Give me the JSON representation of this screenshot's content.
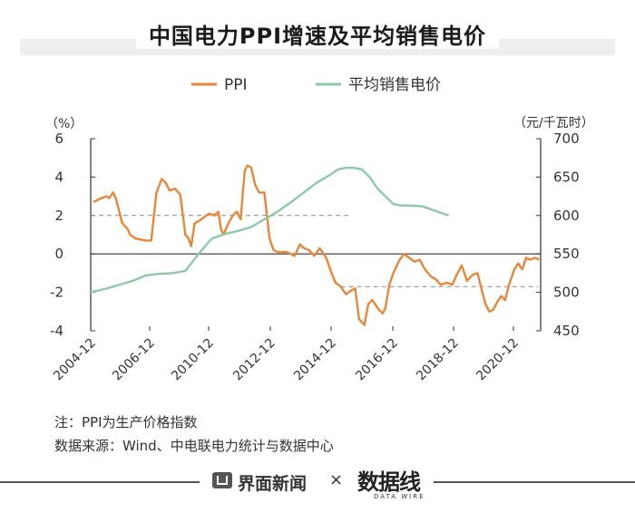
{
  "header": {
    "title": "中国电力PPI增速及平均销售电价"
  },
  "notes": {
    "note1": "注：PPI为生产价格指数",
    "note2": "数据来源：Wind、中电联电力统计与数据中心"
  },
  "footer": {
    "brand": "界面新闻",
    "separator": "×",
    "logo_text": "数据线",
    "logo_sub": "DATA WIRE"
  },
  "colors": {
    "ppi": "#e8863a",
    "price": "#8cc9a8",
    "axis": "#333333",
    "dash": "#888888"
  },
  "chart_data": {
    "type": "line",
    "y_left_unit": "（%）",
    "y_right_unit": "（元/千瓦时）",
    "y_left_ticks": [
      6,
      4,
      2,
      0,
      -2,
      -4
    ],
    "y_right_ticks": [
      700,
      650,
      600,
      550,
      500,
      450
    ],
    "ylim_left": [
      -4,
      6
    ],
    "ylim_right": [
      450,
      700
    ],
    "xlim": [
      2004.9,
      2022.0
    ],
    "x_ticks": [
      "2004-12",
      "2006-12",
      "2010-12",
      "2012-12",
      "2014-12",
      "2016-12",
      "2018-12",
      "2020-12"
    ],
    "legend_position": "top",
    "reference_lines": [
      {
        "axis": "left",
        "y": 2.0,
        "x_start": 2004.9,
        "x_end": 2014.7
      },
      {
        "axis": "left",
        "y": -1.7,
        "x_start": 2014.4,
        "x_end": 2021.9
      }
    ],
    "series": [
      {
        "name": "PPI",
        "axis": "left",
        "x": [
          2005.0,
          2005.3,
          2005.5,
          2005.6,
          2005.75,
          2005.85,
          2006.1,
          2006.3,
          2006.4,
          2006.6,
          2007.0,
          2007.2,
          2007.4,
          2007.6,
          2007.75,
          2007.9,
          2008.1,
          2008.3,
          2008.5,
          2008.62,
          2008.72,
          2008.85,
          2009.0,
          2009.2,
          2009.4,
          2009.6,
          2009.75,
          2009.85,
          2009.95,
          2010.1,
          2010.3,
          2010.45,
          2010.6,
          2010.75,
          2010.85,
          2011.0,
          2011.15,
          2011.3,
          2011.5,
          2011.7,
          2011.85,
          2012.0,
          2012.15,
          2012.35,
          2012.5,
          2012.65,
          2012.85,
          2013.0,
          2013.2,
          2013.4,
          2013.6,
          2013.85,
          2014.0,
          2014.2,
          2014.4,
          2014.6,
          2014.8,
          2014.95,
          2015.1,
          2015.3,
          2015.45,
          2015.6,
          2015.85,
          2016.0,
          2016.1,
          2016.25,
          2016.4,
          2016.6,
          2016.8,
          2017.0,
          2017.2,
          2017.4,
          2017.6,
          2017.85,
          2018.0,
          2018.2,
          2018.45,
          2018.65,
          2018.8,
          2019.0,
          2019.2,
          2019.4,
          2019.6,
          2019.75,
          2019.9,
          2020.05,
          2020.2,
          2020.35,
          2020.5,
          2020.65,
          2020.8,
          2021.0,
          2021.15,
          2021.3,
          2021.45,
          2021.6,
          2021.8,
          2021.95
        ],
        "values": [
          2.7,
          2.9,
          3.0,
          2.9,
          3.2,
          2.9,
          1.6,
          1.3,
          1.0,
          0.8,
          0.7,
          0.7,
          3.2,
          3.9,
          3.7,
          3.3,
          3.4,
          3.1,
          1.0,
          0.8,
          0.4,
          1.6,
          1.7,
          1.9,
          2.1,
          2.0,
          2.2,
          1.3,
          1.0,
          1.5,
          2.0,
          2.2,
          1.8,
          4.3,
          4.6,
          4.5,
          3.6,
          3.2,
          3.2,
          0.8,
          0.2,
          0.1,
          0.1,
          0.1,
          0.0,
          -0.1,
          0.5,
          0.3,
          0.2,
          -0.1,
          0.3,
          -0.2,
          -0.8,
          -1.5,
          -1.7,
          -2.1,
          -1.9,
          -1.8,
          -3.4,
          -3.7,
          -2.6,
          -2.4,
          -2.9,
          -3.1,
          -2.8,
          -1.6,
          -1.0,
          -0.4,
          0.0,
          -0.2,
          -0.4,
          -0.3,
          -0.8,
          -1.2,
          -1.3,
          -1.6,
          -1.5,
          -1.6,
          -1.1,
          -0.6,
          -1.4,
          -1.1,
          -1.0,
          -1.8,
          -2.6,
          -3.0,
          -2.9,
          -2.5,
          -2.2,
          -2.4,
          -1.6,
          -0.8,
          -0.5,
          -0.8,
          -0.2,
          -0.3,
          -0.2,
          -0.3
        ]
      },
      {
        "name": "平均销售电价",
        "axis": "right",
        "x": [
          2004.9,
          2005.5,
          2006.0,
          2006.5,
          2007.0,
          2007.5,
          2008.0,
          2008.5,
          2009.0,
          2009.5,
          2010.0,
          2010.5,
          2011.0,
          2011.5,
          2012.0,
          2012.5,
          2013.0,
          2013.5,
          2014.0,
          2014.3,
          2014.6,
          2014.9,
          2015.2,
          2015.5,
          2015.8,
          2016.1,
          2016.4,
          2016.7,
          2017.0,
          2017.5,
          2018.0,
          2018.5
        ],
        "values": [
          500,
          505,
          510,
          515,
          522,
          524,
          525,
          528,
          550,
          570,
          576,
          580,
          585,
          595,
          605,
          617,
          630,
          643,
          653,
          660,
          662,
          662,
          660,
          650,
          635,
          625,
          615,
          613,
          613,
          612,
          606,
          600
        ]
      }
    ]
  }
}
